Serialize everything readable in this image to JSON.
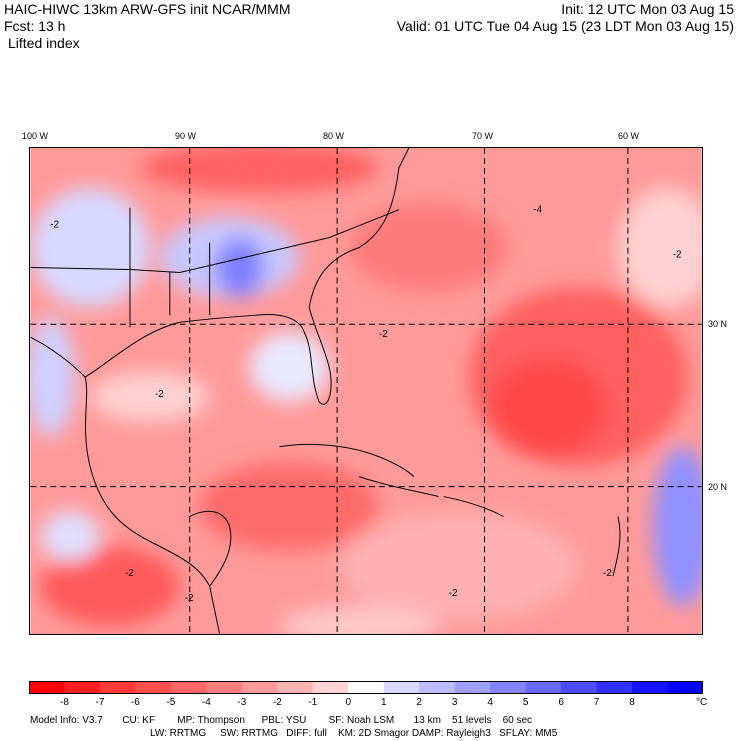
{
  "header": {
    "model_title": "HAIC-HIWC 13km ARW-GFS init    NCAR/MMM",
    "forecast": "Fcst:    13 h",
    "field": "Lifted index",
    "init": "Init: 12 UTC Mon 03 Aug 15",
    "valid": "Valid: 01 UTC Tue 04 Aug 15 (23 LDT Mon 03 Aug 15)"
  },
  "map": {
    "longitude_labels": [
      "100 W",
      "90 W",
      "80 W",
      "70 W",
      "60 W"
    ],
    "longitude_values": [
      -100,
      -90,
      -80,
      -70,
      -60
    ],
    "latitude_labels": [
      "30 N",
      "20 N"
    ],
    "latitude_values": [
      30,
      20
    ],
    "contour_label": "-2",
    "contour_label_alt": "-4"
  },
  "colorbar": {
    "labels": [
      "-8",
      "-7",
      "-6",
      "-5",
      "-4",
      "-3",
      "-2",
      "-1",
      "0",
      "1",
      "2",
      "3",
      "4",
      "5",
      "6",
      "7",
      "8"
    ],
    "unit": "°C",
    "colors": [
      "#ff0000",
      "#ff2020",
      "#ff3a3a",
      "#ff5050",
      "#ff6666",
      "#ff7f7f",
      "#ff9a9a",
      "#ffb4b4",
      "#ffd4d4",
      "#ffffff",
      "#d8d8ff",
      "#bcbcff",
      "#a0a0ff",
      "#8484ff",
      "#6868ff",
      "#4c4cff",
      "#3030ff",
      "#1414ff",
      "#0000ff"
    ]
  },
  "footer": {
    "line1": "Model Info: V3.7       CU: KF        MP: Thompson      PBL: YSU        SF: Noah LSM       13 km    51 levels    60 sec",
    "line2": "LW: RRTMG     SW: RRTMG   DIFF: full    KM: 2D Smagor DAMP: Rayleigh3   SFLAY: MM5"
  }
}
